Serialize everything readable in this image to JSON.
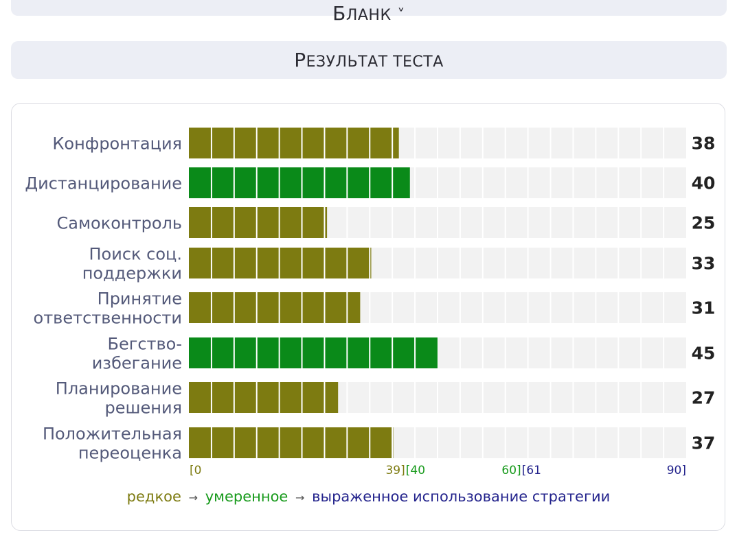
{
  "header": {
    "blank_label_big": "Б",
    "blank_label_rest": "ЛАНК",
    "blank_caret": "˅",
    "result_big_1": "Р",
    "result_rest_1": "ЕЗУЛЬТАТ ",
    "result_rest_2": "ТЕСТА"
  },
  "colors": {
    "rare": "#7d7b11",
    "moderate": "#0a8a19",
    "expressed": "#23238c",
    "track": "#f2f2f2"
  },
  "chart_data": {
    "type": "bar",
    "orientation": "horizontal",
    "categories": [
      [
        "Конфронтация"
      ],
      [
        "Дистанцирование"
      ],
      [
        "Самоконтроль"
      ],
      [
        "Поиск соц.",
        "поддержки"
      ],
      [
        "Принятие",
        "ответственности"
      ],
      [
        "Бегство-",
        "избегание"
      ],
      [
        "Планирование",
        "решения"
      ],
      [
        "Положительная",
        "переоценка"
      ]
    ],
    "values": [
      38,
      40,
      25,
      33,
      31,
      45,
      27,
      37
    ],
    "xlim": [
      0,
      90
    ],
    "segments": 22,
    "ranges": [
      {
        "label_start": "[0",
        "label_end": "39]",
        "from": 0,
        "to": 39,
        "level": "rare"
      },
      {
        "label_start": "[40",
        "label_end": "60]",
        "from": 40,
        "to": 60,
        "level": "moderate"
      },
      {
        "label_start": "[61",
        "label_end": "90]",
        "from": 61,
        "to": 90,
        "level": "expressed"
      }
    ]
  },
  "legend": {
    "rare": "редкое",
    "moderate": "умеренное",
    "expressed": "выраженное использование стратегии",
    "arrow": "→"
  }
}
